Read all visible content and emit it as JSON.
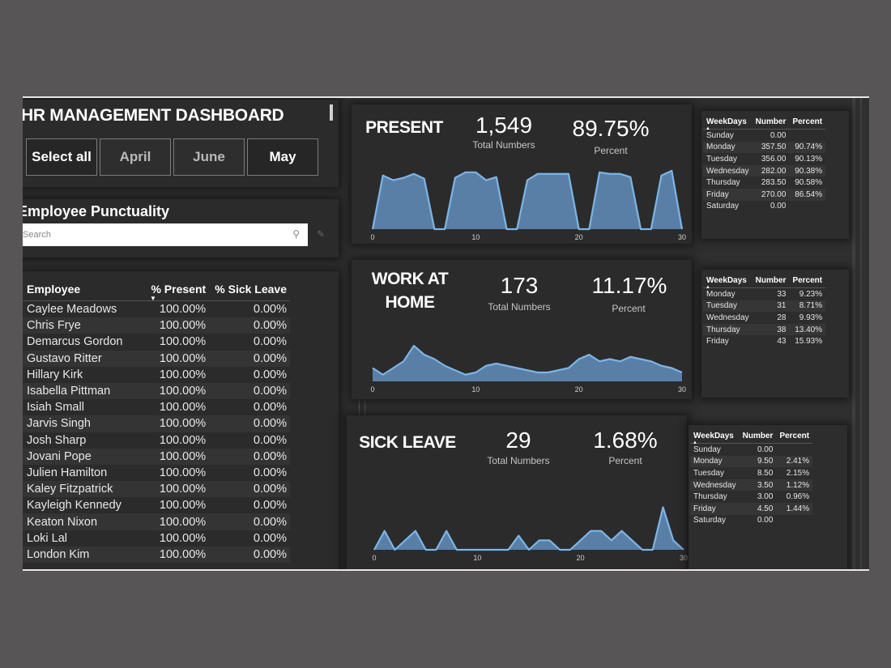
{
  "header": {
    "title": "HR MANAGEMENT DASHBOARD"
  },
  "months": [
    {
      "label": "Select all",
      "selected": true
    },
    {
      "label": "April",
      "selected": false
    },
    {
      "label": "June",
      "selected": false
    },
    {
      "label": "May",
      "selected": true
    }
  ],
  "punctuality": {
    "title": "Employee Punctuality",
    "search_placeholder": "Search"
  },
  "employees": {
    "columns": [
      "Employee",
      "% Present",
      "% Sick Leave"
    ],
    "rows": [
      [
        "Caylee Meadows",
        "100.00%",
        "0.00%"
      ],
      [
        "Chris Frye",
        "100.00%",
        "0.00%"
      ],
      [
        "Demarcus Gordon",
        "100.00%",
        "0.00%"
      ],
      [
        "Gustavo Ritter",
        "100.00%",
        "0.00%"
      ],
      [
        "Hillary Kirk",
        "100.00%",
        "0.00%"
      ],
      [
        "Isabella Pittman",
        "100.00%",
        "0.00%"
      ],
      [
        "Isiah Small",
        "100.00%",
        "0.00%"
      ],
      [
        "Jarvis Singh",
        "100.00%",
        "0.00%"
      ],
      [
        "Josh Sharp",
        "100.00%",
        "0.00%"
      ],
      [
        "Jovani Pope",
        "100.00%",
        "0.00%"
      ],
      [
        "Julien Hamilton",
        "100.00%",
        "0.00%"
      ],
      [
        "Kaley Fitzpatrick",
        "100.00%",
        "0.00%"
      ],
      [
        "Kayleigh Kennedy",
        "100.00%",
        "0.00%"
      ],
      [
        "Keaton Nixon",
        "100.00%",
        "0.00%"
      ],
      [
        "Loki Lal",
        "100.00%",
        "0.00%"
      ],
      [
        "London Kim",
        "100.00%",
        "0.00%"
      ]
    ]
  },
  "present": {
    "label": "PRESENT",
    "total": "1,549",
    "total_label": "Total Numbers",
    "percent": "89.75%",
    "percent_label": "Percent"
  },
  "wfh": {
    "label_line1": "WORK AT",
    "label_line2": "HOME",
    "total": "173",
    "total_label": "Total Numbers",
    "percent": "11.17%",
    "percent_label": "Percent"
  },
  "sick": {
    "label": "SICK LEAVE",
    "total": "29",
    "total_label": "Total Numbers",
    "percent": "1.68%",
    "percent_label": "Percent"
  },
  "weekday_tables": {
    "present": {
      "columns": [
        "WeekDays",
        "Number",
        "Percent"
      ],
      "rows": [
        [
          "Sunday",
          "0.00",
          ""
        ],
        [
          "Monday",
          "357.50",
          "90.74%"
        ],
        [
          "Tuesday",
          "356.00",
          "90.13%"
        ],
        [
          "Wednesday",
          "282.00",
          "90.38%"
        ],
        [
          "Thursday",
          "283.50",
          "90.58%"
        ],
        [
          "Friday",
          "270.00",
          "86.54%"
        ],
        [
          "Saturday",
          "0.00",
          ""
        ]
      ]
    },
    "wfh": {
      "columns": [
        "WeekDays",
        "Number",
        "Percent"
      ],
      "rows": [
        [
          "Monday",
          "33",
          "9.23%"
        ],
        [
          "Tuesday",
          "31",
          "8.71%"
        ],
        [
          "Wednesday",
          "28",
          "9.93%"
        ],
        [
          "Thursday",
          "38",
          "13.40%"
        ],
        [
          "Friday",
          "43",
          "15.93%"
        ]
      ]
    },
    "sick": {
      "columns": [
        "WeekDays",
        "Number",
        "Percent"
      ],
      "rows": [
        [
          "Sunday",
          "0.00",
          ""
        ],
        [
          "Monday",
          "9.50",
          "2.41%"
        ],
        [
          "Tuesday",
          "8.50",
          "2.15%"
        ],
        [
          "Wednesday",
          "3.50",
          "1.12%"
        ],
        [
          "Thursday",
          "3.00",
          "0.96%"
        ],
        [
          "Friday",
          "4.50",
          "1.44%"
        ],
        [
          "Saturday",
          "0.00",
          ""
        ]
      ]
    }
  },
  "colors": {
    "area_fill": "#5a7fa6",
    "area_line": "#7cb5e6",
    "background": "#303030"
  },
  "chart_data": [
    {
      "type": "area",
      "xlim": [
        0,
        30
      ],
      "xticks": [
        0,
        10,
        20,
        30
      ],
      "ylim": [
        0,
        80
      ],
      "x": [
        0,
        1,
        2,
        3,
        4,
        5,
        6,
        7,
        8,
        9,
        10,
        11,
        12,
        13,
        14,
        15,
        16,
        17,
        18,
        19,
        20,
        21,
        22,
        23,
        24,
        25,
        26,
        27,
        28,
        29,
        30
      ],
      "values": [
        0,
        68,
        62,
        65,
        70,
        64,
        0,
        0,
        65,
        72,
        72,
        62,
        66,
        0,
        0,
        62,
        70,
        70,
        70,
        70,
        0,
        0,
        72,
        70,
        70,
        66,
        0,
        0,
        68,
        74,
        0
      ]
    },
    {
      "type": "area",
      "xlim": [
        0,
        30
      ],
      "xticks": [
        0,
        10,
        20,
        30
      ],
      "ylim": [
        0,
        12
      ],
      "x": [
        0,
        1,
        2,
        3,
        4,
        5,
        6,
        7,
        8,
        9,
        10,
        11,
        12,
        13,
        14,
        15,
        16,
        17,
        18,
        19,
        20,
        21,
        22,
        23,
        24,
        25,
        26,
        27,
        28,
        29,
        30
      ],
      "values": [
        3,
        1.5,
        3,
        4.5,
        8,
        6,
        5,
        3.5,
        2.5,
        1.5,
        2,
        3.5,
        4,
        3.5,
        3,
        2.5,
        2,
        2,
        2.5,
        3,
        5,
        6,
        4.5,
        5,
        4.5,
        5.5,
        5,
        4.5,
        3.5,
        3,
        2
      ]
    },
    {
      "type": "area",
      "xlim": [
        0,
        30
      ],
      "xticks": [
        0,
        10,
        20,
        30
      ],
      "ylim": [
        0,
        6
      ],
      "x": [
        0,
        1,
        2,
        3,
        4,
        5,
        6,
        7,
        8,
        9,
        10,
        11,
        12,
        13,
        14,
        15,
        16,
        17,
        18,
        19,
        20,
        21,
        22,
        23,
        24,
        25,
        26,
        27,
        28,
        29,
        30
      ],
      "values": [
        0,
        2,
        0,
        1,
        2,
        0,
        0,
        2,
        0,
        0,
        0,
        0,
        0,
        0,
        1.5,
        0,
        1,
        1,
        0,
        0,
        1,
        2,
        2,
        1,
        2,
        1,
        0,
        0,
        4.5,
        1,
        0
      ]
    }
  ]
}
